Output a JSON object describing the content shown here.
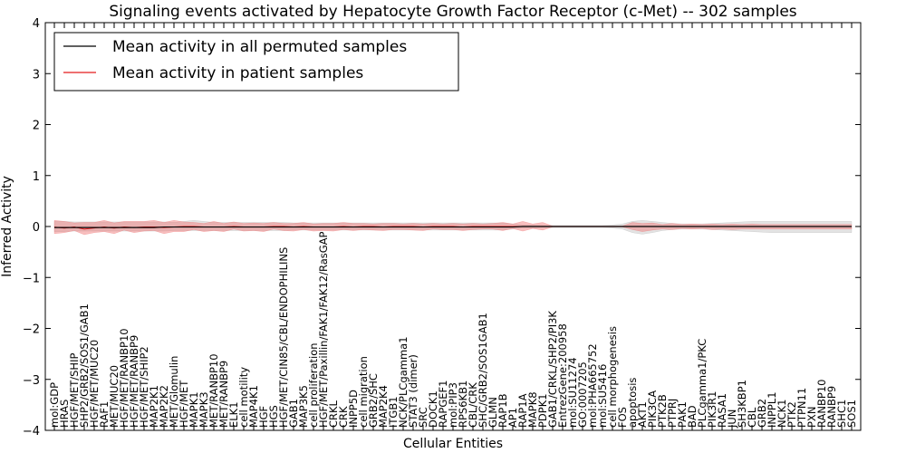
{
  "chart_data": {
    "type": "line",
    "title": "Signaling events activated by Hepatocyte Growth Factor Receptor (c-Met) -- 302 samples",
    "xlabel": "Cellular Entities",
    "ylabel": "Inferred Activity",
    "ylim": [
      -4,
      4
    ],
    "yticks": [
      -4,
      -3,
      -2,
      -1,
      0,
      1,
      2,
      3,
      4
    ],
    "ytick_labels": [
      "−4",
      "−3",
      "−2",
      "−1",
      "0",
      "1",
      "2",
      "3",
      "4"
    ],
    "grid": false,
    "legend": {
      "position": "top-left",
      "entries": [
        {
          "label": "Mean activity in all permuted samples",
          "color": "#000000"
        },
        {
          "label": "Mean activity in patient samples",
          "color": "#e31a1c"
        }
      ]
    },
    "categories": [
      "mol:GDP",
      "HRAS",
      "HGF/MET/SHIP",
      "SHP2/GRB2/SOS1/GAB1",
      "HGF/MET/MUC20",
      "RAF1",
      "MET/MUC20",
      "HGF/MET/RANBP10",
      "HGF/MET/RANBP9",
      "HGF/MET/SHIP2",
      "MAP2K1",
      "MAP2K2",
      "MET/Glomulin",
      "HGF/MET",
      "MAPK1",
      "MAPK3",
      "MET/RANBP10",
      "MET/RANBP9",
      "ELK1",
      "cell motility",
      "MAP4K1",
      "HGF",
      "HGS",
      "HGF/MET/CIN85/CBL/ENDOPHILINS",
      "GAB1",
      "MAP3K5",
      "cell proliferation",
      "HGF/MET/Paxillin/FAK1/FAK12/RasGAP",
      "CRKL",
      "CRK",
      "INPP5D",
      "cell migration",
      "GRB2/SHC",
      "MAP2K4",
      "ITGB1",
      "NCK/PLCgamma1",
      "STAT3 (dimer)",
      "SRC",
      "DOCK1",
      "RAPGEF1",
      "mol:PIP3",
      "RPS6KB1",
      "CBL/CRK",
      "SHC/GRB2/SOS1GAB1",
      "GLMN",
      "RAP1B",
      "AP1",
      "RAP1A",
      "MAPK8",
      "PDPK1",
      "GAB1/CRKL/SHP2/PI3K",
      "EntrezGene:200958",
      "mol:SU11274",
      "GO:0007205",
      "mol:PHA665752",
      "mol:SU5416",
      "cell morphogenesis",
      "FOS",
      "apoptosis",
      "AKT1",
      "PIK3CA",
      "PTK2B",
      "PTPRJ",
      "PAK1",
      "BAD",
      "PLCgamma1/PKC",
      "PIK3R1",
      "RASA1",
      "JUN",
      "SH3KBP1",
      "CBL",
      "GRB2",
      "INPPL1",
      "NCK1",
      "PTK2",
      "PTPN11",
      "PXN",
      "RANBP10",
      "RANBP9",
      "SHC1",
      "SOS1"
    ],
    "series": [
      {
        "name": "Mean activity in all permuted samples",
        "color": "#000000",
        "values": [
          -0.02,
          -0.02,
          -0.02,
          -0.02,
          -0.02,
          -0.02,
          -0.02,
          -0.02,
          -0.02,
          -0.02,
          -0.02,
          -0.01,
          -0.01,
          -0.01,
          -0.01,
          -0.01,
          -0.01,
          -0.01,
          -0.01,
          -0.01,
          -0.01,
          -0.01,
          -0.01,
          -0.01,
          -0.01,
          -0.01,
          -0.01,
          -0.01,
          -0.01,
          -0.01,
          -0.01,
          -0.01,
          -0.01,
          -0.01,
          -0.01,
          -0.01,
          -0.01,
          -0.01,
          -0.01,
          -0.01,
          -0.01,
          -0.01,
          -0.01,
          -0.01,
          -0.01,
          -0.01,
          -0.01,
          0.0,
          0.0,
          0.0,
          0.0,
          0.0,
          0.0,
          0.0,
          0.0,
          0.0,
          0.0,
          0.0,
          0.0,
          0.0,
          0.0,
          0.0,
          0.0,
          0.0,
          0.0,
          0.0,
          0.0,
          0.0,
          0.0,
          0.0,
          0.0,
          0.0,
          0.0,
          0.0,
          0.0,
          0.0,
          0.0,
          0.0,
          0.0,
          0.0,
          0.0
        ],
        "lower": [
          -0.1,
          -0.1,
          -0.09,
          -0.09,
          -0.09,
          -0.09,
          -0.09,
          -0.09,
          -0.09,
          -0.09,
          -0.09,
          -0.09,
          -0.08,
          -0.08,
          -0.08,
          -0.08,
          -0.08,
          -0.08,
          -0.08,
          -0.08,
          -0.08,
          -0.08,
          -0.08,
          -0.08,
          -0.07,
          -0.07,
          -0.07,
          -0.07,
          -0.07,
          -0.07,
          -0.07,
          -0.07,
          -0.07,
          -0.07,
          -0.07,
          -0.07,
          -0.07,
          -0.07,
          -0.07,
          -0.07,
          -0.07,
          -0.07,
          -0.07,
          -0.07,
          -0.07,
          -0.07,
          -0.05,
          -0.03,
          -0.03,
          -0.02,
          -0.02,
          -0.02,
          -0.02,
          -0.02,
          -0.02,
          -0.02,
          -0.03,
          -0.05,
          -0.12,
          -0.15,
          -0.12,
          -0.08,
          -0.06,
          -0.05,
          -0.05,
          -0.05,
          -0.06,
          -0.07,
          -0.08,
          -0.09,
          -0.1,
          -0.11,
          -0.12,
          -0.12,
          -0.12,
          -0.12,
          -0.12,
          -0.12,
          -0.12,
          -0.12,
          -0.12
        ],
        "upper": [
          0.1,
          0.1,
          0.09,
          0.09,
          0.09,
          0.09,
          0.09,
          0.09,
          0.09,
          0.09,
          0.09,
          0.09,
          0.08,
          0.1,
          0.12,
          0.1,
          0.08,
          0.08,
          0.08,
          0.08,
          0.08,
          0.08,
          0.08,
          0.08,
          0.07,
          0.07,
          0.07,
          0.07,
          0.07,
          0.07,
          0.07,
          0.07,
          0.07,
          0.07,
          0.07,
          0.07,
          0.07,
          0.07,
          0.07,
          0.07,
          0.07,
          0.07,
          0.07,
          0.07,
          0.07,
          0.07,
          0.05,
          0.03,
          0.03,
          0.02,
          0.02,
          0.02,
          0.02,
          0.02,
          0.02,
          0.02,
          0.03,
          0.05,
          0.1,
          0.12,
          0.1,
          0.08,
          0.06,
          0.05,
          0.05,
          0.05,
          0.06,
          0.07,
          0.08,
          0.09,
          0.1,
          0.1,
          0.1,
          0.1,
          0.1,
          0.1,
          0.1,
          0.1,
          0.1,
          0.1,
          0.1
        ]
      },
      {
        "name": "Mean activity in patient samples",
        "color": "#e31a1c",
        "values": [
          -0.01,
          -0.03,
          -0.01,
          -0.05,
          -0.03,
          -0.01,
          -0.03,
          -0.01,
          -0.02,
          -0.01,
          -0.01,
          -0.02,
          -0.01,
          0.0,
          0.0,
          -0.01,
          -0.01,
          -0.01,
          0.0,
          -0.01,
          -0.01,
          -0.01,
          0.0,
          0.0,
          -0.01,
          0.0,
          -0.01,
          -0.01,
          -0.01,
          0.0,
          -0.01,
          0.0,
          0.0,
          -0.01,
          0.0,
          0.0,
          0.0,
          -0.01,
          0.0,
          0.0,
          0.0,
          -0.01,
          0.0,
          0.0,
          0.0,
          0.0,
          0.0,
          0.0,
          0.0,
          0.0,
          0.0,
          0.0,
          0.0,
          0.0,
          0.0,
          0.0,
          0.0,
          0.0,
          0.0,
          0.0,
          0.0,
          0.0,
          0.0,
          0.0,
          0.0,
          0.0,
          0.0,
          0.0,
          0.0,
          0.0,
          0.0,
          0.0,
          0.0,
          0.0,
          0.0,
          0.0,
          0.0,
          0.0,
          0.0,
          0.0,
          0.0
        ],
        "lower": [
          -0.14,
          -0.12,
          -0.08,
          -0.16,
          -0.12,
          -0.1,
          -0.14,
          -0.07,
          -0.12,
          -0.09,
          -0.08,
          -0.14,
          -0.1,
          -0.1,
          -0.06,
          -0.1,
          -0.08,
          -0.1,
          -0.05,
          -0.09,
          -0.08,
          -0.1,
          -0.05,
          -0.08,
          -0.09,
          -0.06,
          -0.09,
          -0.08,
          -0.09,
          -0.06,
          -0.08,
          -0.06,
          -0.07,
          -0.08,
          -0.06,
          -0.06,
          -0.07,
          -0.08,
          -0.05,
          -0.06,
          -0.06,
          -0.08,
          -0.06,
          -0.05,
          -0.05,
          -0.08,
          -0.04,
          -0.09,
          -0.04,
          -0.07,
          -0.01,
          -0.01,
          -0.01,
          -0.01,
          -0.01,
          -0.01,
          -0.01,
          -0.01,
          -0.06,
          -0.1,
          -0.07,
          -0.05,
          -0.06,
          -0.04,
          -0.05,
          -0.04,
          -0.06,
          -0.05,
          -0.06,
          -0.05,
          -0.05,
          -0.05,
          -0.05,
          -0.05,
          -0.05,
          -0.05,
          -0.05,
          -0.05,
          -0.05,
          -0.05,
          -0.05
        ],
        "upper": [
          0.12,
          0.1,
          0.07,
          0.08,
          0.08,
          0.12,
          0.07,
          0.1,
          0.1,
          0.1,
          0.12,
          0.08,
          0.12,
          0.09,
          0.08,
          0.06,
          0.1,
          0.06,
          0.09,
          0.06,
          0.07,
          0.06,
          0.08,
          0.06,
          0.06,
          0.08,
          0.05,
          0.06,
          0.06,
          0.08,
          0.06,
          0.06,
          0.05,
          0.06,
          0.06,
          0.05,
          0.06,
          0.05,
          0.06,
          0.05,
          0.06,
          0.05,
          0.06,
          0.05,
          0.06,
          0.08,
          0.05,
          0.1,
          0.05,
          0.08,
          0.01,
          0.01,
          0.01,
          0.01,
          0.01,
          0.01,
          0.01,
          0.01,
          0.08,
          0.06,
          0.07,
          0.04,
          0.06,
          0.04,
          0.05,
          0.04,
          0.05,
          0.04,
          0.05,
          0.04,
          0.05,
          0.04,
          0.04,
          0.04,
          0.04,
          0.04,
          0.04,
          0.04,
          0.04,
          0.04,
          0.04
        ]
      }
    ]
  }
}
